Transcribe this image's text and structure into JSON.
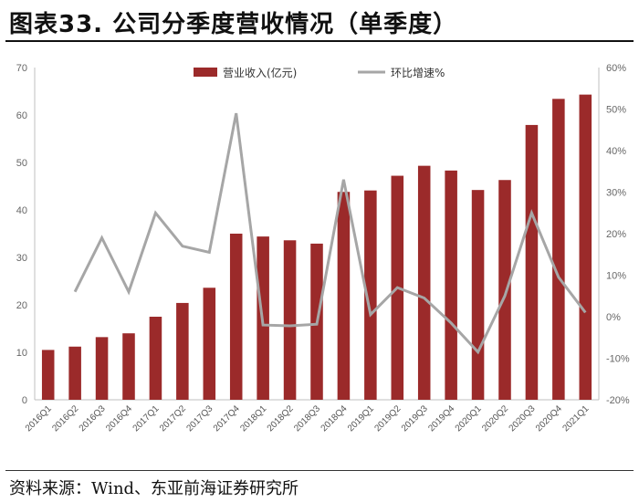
{
  "header": {
    "title": "图表33. 公司分季度营收情况（单季度）"
  },
  "footer": {
    "source": "资料来源：Wind、东亚前海证券研究所"
  },
  "colors": {
    "bar": "#9B2A2A",
    "line": "#A6A6A6",
    "axis": "#BFBFBF"
  },
  "chart_data": {
    "type": "bar",
    "title": "",
    "categories": [
      "2016Q1",
      "2016Q2",
      "2016Q3",
      "2016Q4",
      "2017Q1",
      "2017Q2",
      "2017Q3",
      "2017Q4",
      "2018Q1",
      "2018Q2",
      "2018Q3",
      "2018Q4",
      "2019Q1",
      "2019Q2",
      "2019Q3",
      "2019Q4",
      "2020Q1",
      "2020Q2",
      "2020Q3",
      "2020Q4",
      "2021Q1"
    ],
    "series": [
      {
        "name": "营业收入(亿元)",
        "type": "bar",
        "axis": "left",
        "values": [
          10.5,
          11.2,
          13.2,
          14.0,
          17.5,
          20.4,
          23.6,
          35.0,
          34.4,
          33.6,
          32.9,
          43.8,
          44.1,
          47.2,
          49.3,
          48.3,
          44.2,
          46.3,
          57.9,
          63.4,
          64.3
        ]
      },
      {
        "name": "环比增速%",
        "type": "line",
        "axis": "right",
        "values": [
          null,
          6.0,
          19.0,
          6.0,
          25.0,
          17.0,
          15.5,
          49.0,
          -2.0,
          -2.2,
          -1.8,
          33.0,
          0.5,
          7.0,
          4.5,
          -1.5,
          -8.5,
          5.0,
          25.0,
          9.5,
          1.0
        ]
      }
    ],
    "y_left": {
      "min": 0,
      "max": 70,
      "step": 10,
      "ticks": [
        "0",
        "10",
        "20",
        "30",
        "40",
        "50",
        "60",
        "70"
      ]
    },
    "y_right": {
      "min": -20,
      "max": 60,
      "step": 10,
      "ticks": [
        "-20%",
        "-10%",
        "0%",
        "10%",
        "20%",
        "30%",
        "40%",
        "50%",
        "60%"
      ]
    },
    "x_tick_labels": [
      "2016Q1",
      "2016Q2",
      "2016Q3",
      "2016Q4",
      "2017Q1",
      "2017Q2",
      "2017Q3",
      "2017Q4",
      "2018Q1",
      "2018Q2",
      "2018Q3",
      "2018Q4",
      "2019Q1",
      "2019Q2",
      "2019Q3",
      "2019Q4",
      "2020Q1",
      "2020Q2",
      "2020Q3",
      "2020Q4",
      "2021Q1"
    ],
    "legend": [
      "营业收入(亿元)",
      "环比增速%"
    ],
    "legend_position": "top-right"
  }
}
